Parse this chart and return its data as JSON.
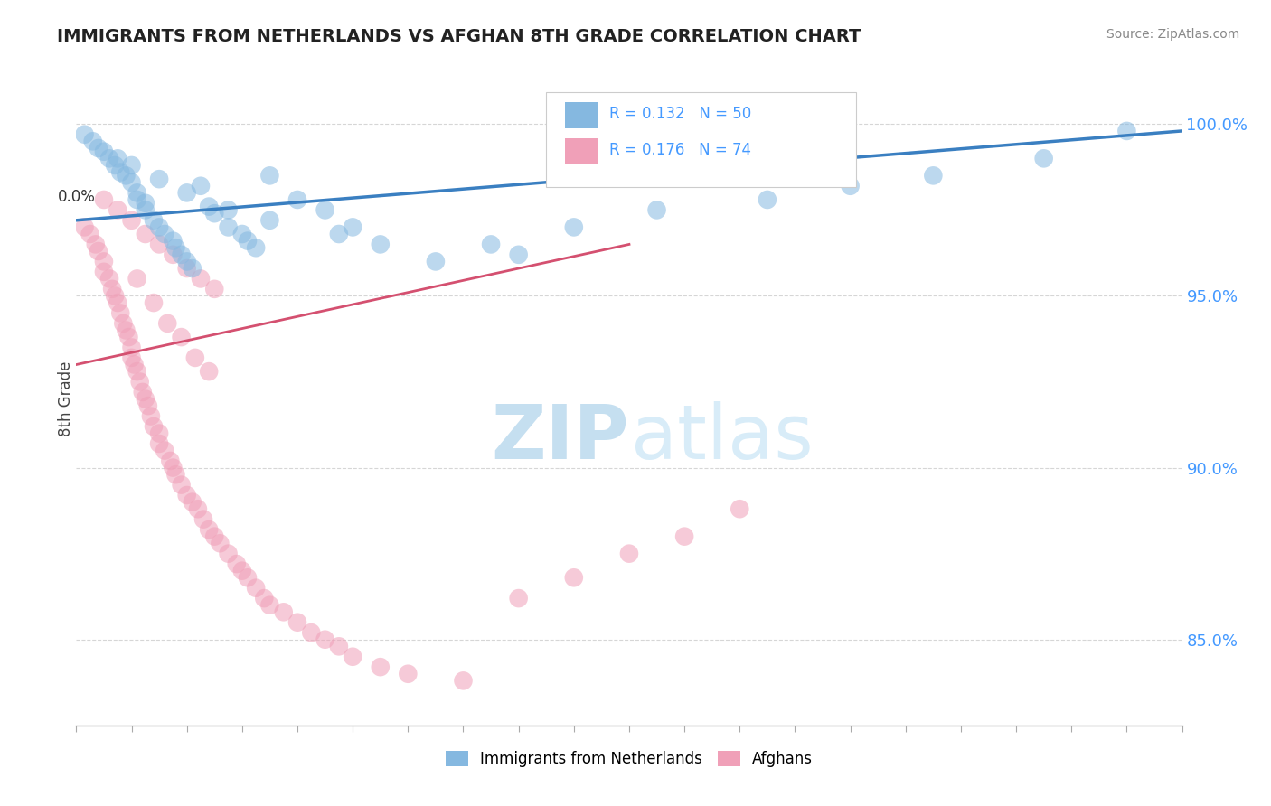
{
  "title": "IMMIGRANTS FROM NETHERLANDS VS AFGHAN 8TH GRADE CORRELATION CHART",
  "source": "Source: ZipAtlas.com",
  "ylabel": "8th Grade",
  "ytick_vals": [
    0.85,
    0.9,
    0.95,
    1.0
  ],
  "ytick_labels": [
    "85.0%",
    "90.0%",
    "95.0%",
    "100.0%"
  ],
  "xlim": [
    0.0,
    0.4
  ],
  "ylim": [
    0.825,
    1.015
  ],
  "legend_r1": "R = 0.132",
  "legend_n1": "N = 50",
  "legend_r2": "R = 0.176",
  "legend_n2": "N = 74",
  "legend_label1": "Immigrants from Netherlands",
  "legend_label2": "Afghans",
  "blue_color": "#85b8e0",
  "blue_line_color": "#3a7fc1",
  "pink_color": "#f0a0b8",
  "pink_line_color": "#d45070",
  "title_color": "#222222",
  "source_color": "#888888",
  "tick_color": "#4499ff",
  "grid_color": "#cccccc",
  "blue_scatter_x": [
    0.003,
    0.006,
    0.008,
    0.01,
    0.012,
    0.014,
    0.016,
    0.018,
    0.02,
    0.022,
    0.022,
    0.025,
    0.025,
    0.028,
    0.03,
    0.032,
    0.035,
    0.036,
    0.038,
    0.04,
    0.042,
    0.045,
    0.048,
    0.05,
    0.055,
    0.06,
    0.062,
    0.065,
    0.07,
    0.08,
    0.09,
    0.1,
    0.11,
    0.13,
    0.15,
    0.18,
    0.21,
    0.25,
    0.28,
    0.31,
    0.35,
    0.38,
    0.015,
    0.02,
    0.03,
    0.04,
    0.055,
    0.07,
    0.095,
    0.16
  ],
  "blue_scatter_y": [
    0.997,
    0.995,
    0.993,
    0.992,
    0.99,
    0.988,
    0.986,
    0.985,
    0.983,
    0.98,
    0.978,
    0.977,
    0.975,
    0.972,
    0.97,
    0.968,
    0.966,
    0.964,
    0.962,
    0.96,
    0.958,
    0.982,
    0.976,
    0.974,
    0.97,
    0.968,
    0.966,
    0.964,
    0.985,
    0.978,
    0.975,
    0.97,
    0.965,
    0.96,
    0.965,
    0.97,
    0.975,
    0.978,
    0.982,
    0.985,
    0.99,
    0.998,
    0.99,
    0.988,
    0.984,
    0.98,
    0.975,
    0.972,
    0.968,
    0.962
  ],
  "pink_scatter_x": [
    0.003,
    0.005,
    0.007,
    0.008,
    0.01,
    0.01,
    0.012,
    0.013,
    0.014,
    0.015,
    0.016,
    0.017,
    0.018,
    0.019,
    0.02,
    0.02,
    0.021,
    0.022,
    0.023,
    0.024,
    0.025,
    0.026,
    0.027,
    0.028,
    0.03,
    0.03,
    0.032,
    0.034,
    0.035,
    0.036,
    0.038,
    0.04,
    0.042,
    0.044,
    0.046,
    0.048,
    0.05,
    0.052,
    0.055,
    0.058,
    0.06,
    0.062,
    0.065,
    0.068,
    0.07,
    0.075,
    0.08,
    0.085,
    0.09,
    0.095,
    0.1,
    0.11,
    0.12,
    0.14,
    0.16,
    0.18,
    0.2,
    0.22,
    0.24,
    0.01,
    0.015,
    0.02,
    0.025,
    0.03,
    0.035,
    0.04,
    0.045,
    0.05,
    0.022,
    0.028,
    0.033,
    0.038,
    0.043,
    0.048
  ],
  "pink_scatter_y": [
    0.97,
    0.968,
    0.965,
    0.963,
    0.96,
    0.957,
    0.955,
    0.952,
    0.95,
    0.948,
    0.945,
    0.942,
    0.94,
    0.938,
    0.935,
    0.932,
    0.93,
    0.928,
    0.925,
    0.922,
    0.92,
    0.918,
    0.915,
    0.912,
    0.91,
    0.907,
    0.905,
    0.902,
    0.9,
    0.898,
    0.895,
    0.892,
    0.89,
    0.888,
    0.885,
    0.882,
    0.88,
    0.878,
    0.875,
    0.872,
    0.87,
    0.868,
    0.865,
    0.862,
    0.86,
    0.858,
    0.855,
    0.852,
    0.85,
    0.848,
    0.845,
    0.842,
    0.84,
    0.838,
    0.862,
    0.868,
    0.875,
    0.88,
    0.888,
    0.978,
    0.975,
    0.972,
    0.968,
    0.965,
    0.962,
    0.958,
    0.955,
    0.952,
    0.955,
    0.948,
    0.942,
    0.938,
    0.932,
    0.928
  ]
}
